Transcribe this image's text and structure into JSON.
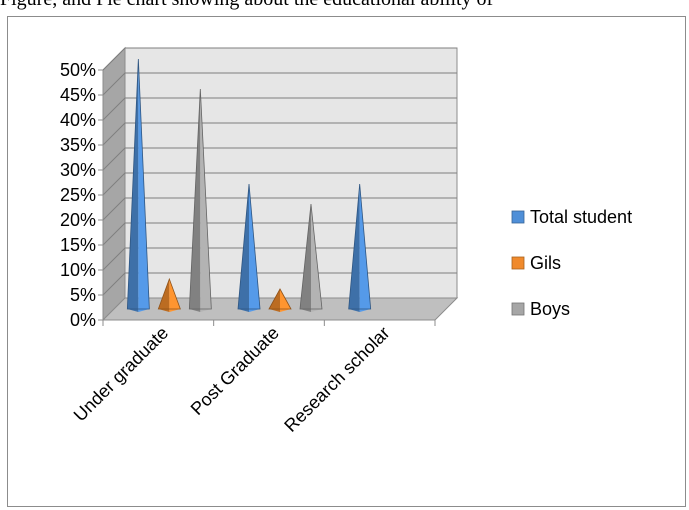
{
  "page": {
    "top_text": "Figure, and Pie chart showing about the educational ability of"
  },
  "colors": {
    "wall": "#e6e6e6",
    "floor": "#bfbfbf",
    "side_wall": "#a6a6a6",
    "grid": "#7f7f7f"
  },
  "chart_data": {
    "type": "bar",
    "subtype": "3d-pyramid",
    "title": "",
    "xlabel": "",
    "ylabel": "",
    "categories": [
      "Under graduate",
      "Post Graduate",
      "Research scholar"
    ],
    "series": [
      {
        "name": "Total student",
        "values": [
          50,
          25,
          25
        ],
        "color": "#4f8fd8"
      },
      {
        "name": "Gils",
        "values": [
          6,
          4,
          0
        ],
        "color": "#f08a2c"
      },
      {
        "name": "Boys",
        "values": [
          44,
          21,
          0
        ],
        "color": "#a6a6a6"
      }
    ],
    "ylim": [
      0,
      50
    ],
    "yticks": [
      "0%",
      "5%",
      "10%",
      "15%",
      "20%",
      "25%",
      "30%",
      "35%",
      "40%",
      "45%",
      "50%"
    ],
    "grid": true,
    "legend_position": "right"
  }
}
